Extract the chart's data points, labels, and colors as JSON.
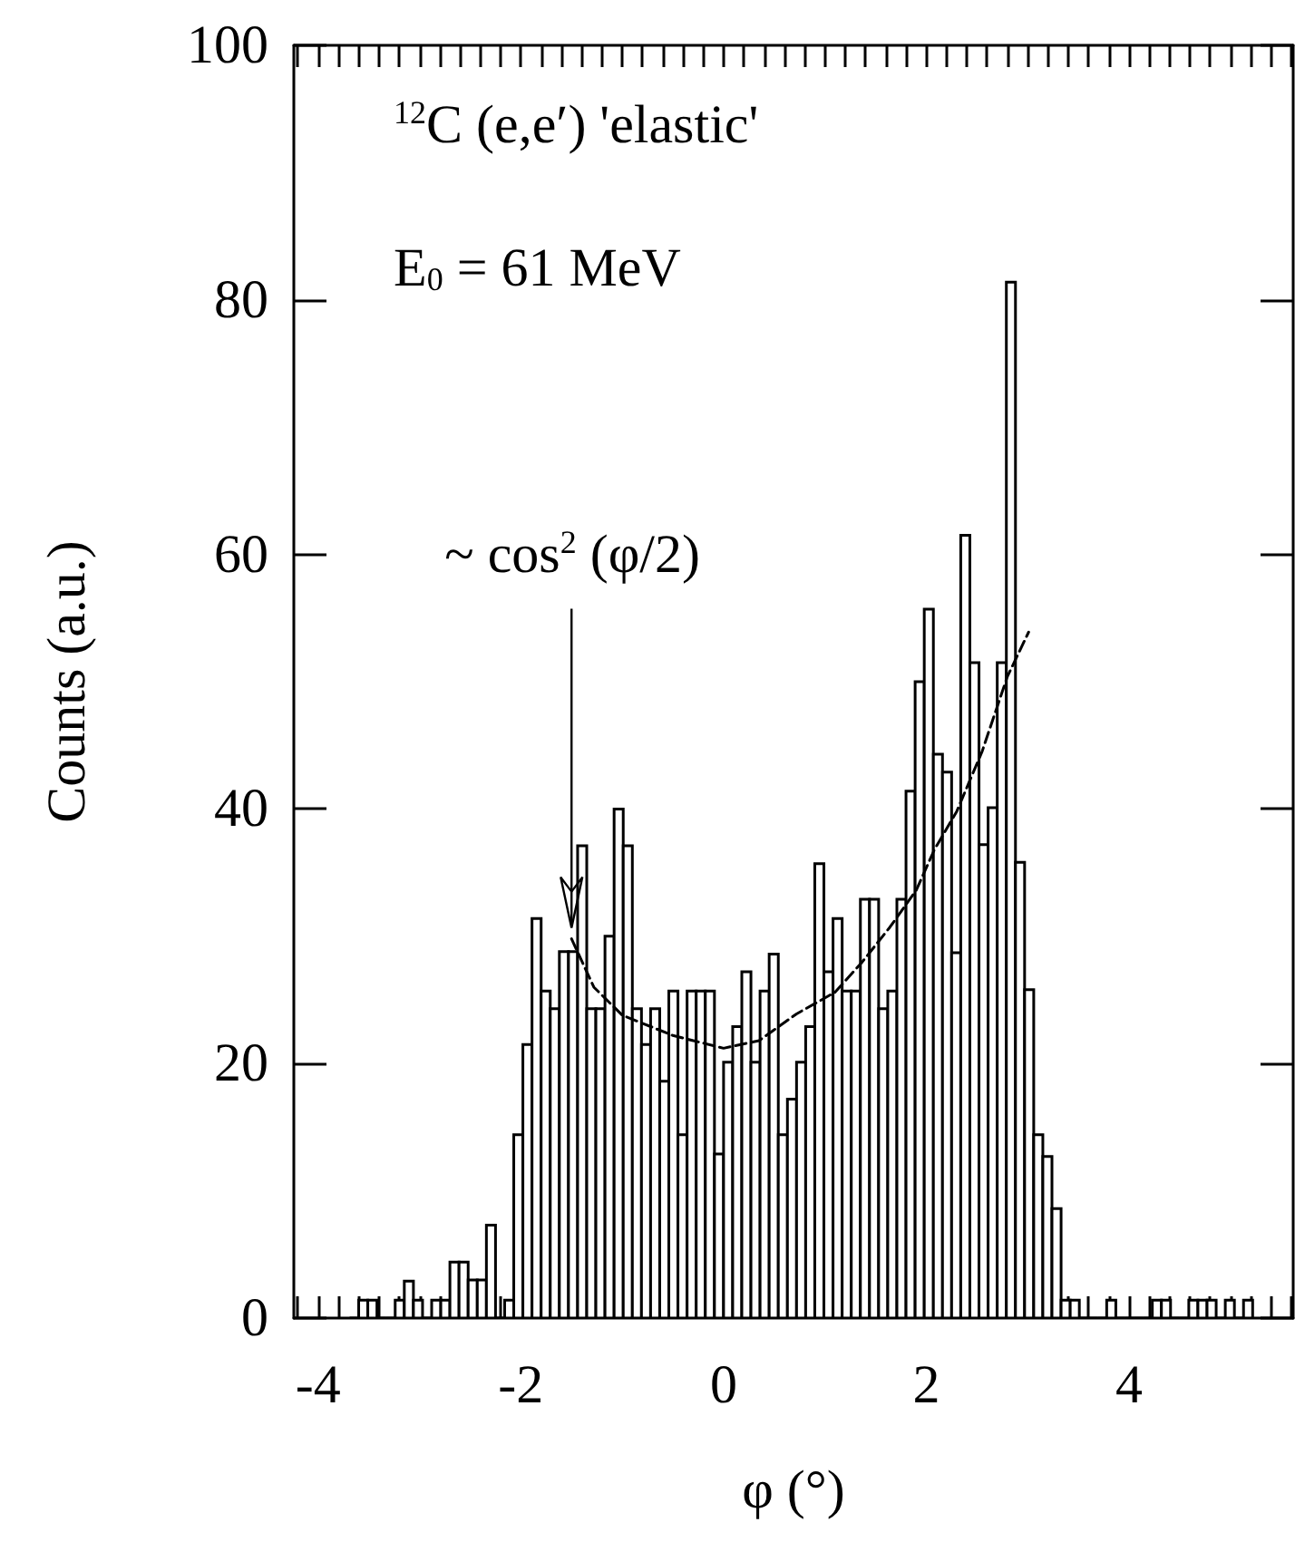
{
  "chart_data": {
    "type": "histogram",
    "xlabel": "φ (°)",
    "ylabel": "Counts (a.u.)",
    "color": "#000000",
    "bins": [
      -3.69,
      -3.6,
      -3.51,
      -3.42,
      -3.33,
      -3.24,
      -3.15,
      -3.06,
      -2.97,
      -2.88,
      -2.79,
      -2.7,
      -2.61,
      -2.52,
      -2.43,
      -2.34,
      -2.25,
      -2.16,
      -2.07,
      -1.98,
      -1.89,
      -1.8,
      -1.71,
      -1.62,
      -1.53,
      -1.44,
      -1.35,
      -1.26,
      -1.17,
      -1.08,
      -0.99,
      -0.9,
      -0.81,
      -0.72,
      -0.63,
      -0.54,
      -0.45,
      -0.36,
      -0.27,
      -0.18,
      -0.09,
      0,
      0.09,
      0.18,
      0.27,
      0.36,
      0.45,
      0.54,
      0.63,
      0.72,
      0.81,
      0.9,
      0.99,
      1.08,
      1.17,
      1.26,
      1.35,
      1.44,
      1.53,
      1.62,
      1.71,
      1.8,
      1.89,
      1.98,
      2.07,
      2.16,
      2.25,
      2.34,
      2.43,
      2.52,
      2.61,
      2.7,
      2.79,
      2.88,
      2.97,
      3.06,
      3.15,
      3.24,
      3.33,
      3.42,
      3.51,
      3.6,
      3.69,
      3.78,
      3.87,
      3.96,
      4.05,
      4.14,
      4.23,
      4.32,
      4.41,
      4.5,
      4.59,
      4.68,
      4.77,
      4.86,
      4.95,
      5.04,
      5.13,
      5.22
    ],
    "values": [
      0,
      1.4,
      1.4,
      0,
      0,
      1.4,
      2.9,
      1.4,
      0,
      1.4,
      1.4,
      4.4,
      4.4,
      3,
      3,
      7.3,
      0,
      1.4,
      14.4,
      21.5,
      31.4,
      25.7,
      24.3,
      28.8,
      28.8,
      37.1,
      24.3,
      24.3,
      30,
      40,
      37.1,
      24.3,
      21.5,
      24.3,
      18.6,
      25.7,
      14.4,
      25.7,
      25.7,
      25.7,
      12.9,
      20.1,
      22.9,
      27.2,
      20.1,
      25.7,
      28.6,
      14.4,
      17.2,
      20.1,
      22.9,
      35.7,
      27.2,
      31.4,
      25.7,
      25.7,
      32.9,
      32.9,
      24.3,
      25.7,
      32.9,
      41.4,
      50,
      55.7,
      44.3,
      42.9,
      28.7,
      61.5,
      51.5,
      37.2,
      40.1,
      51.5,
      81.4,
      35.8,
      25.8,
      14.4,
      12.7,
      8.6,
      1.4,
      1.4,
      0,
      0,
      0,
      1.4,
      0,
      0,
      0,
      0,
      1.4,
      1.4,
      0,
      0,
      1.4,
      1.4,
      1.4,
      0,
      1.4,
      0,
      1.4
    ],
    "series": [
      {
        "type": "line",
        "color": "#000000",
        "line_style": "dashed",
        "marker": "none",
        "x": [
          -1.5,
          -1.28,
          -1.0,
          -0.5,
          0,
          0.35,
          0.72,
          1.1,
          1.37,
          1.64,
          1.9,
          2.08,
          2.3,
          2.55,
          2.8,
          3.01
        ],
        "values": [
          29.8,
          26,
          23.8,
          22.2,
          21.2,
          21.8,
          23.9,
          25.6,
          28,
          30.7,
          33.6,
          36.8,
          39.8,
          44.5,
          50.4,
          53.9
        ]
      }
    ],
    "xlim": [
      -4.24,
      5.62
    ],
    "ylim": [
      0,
      100
    ],
    "xticks": [
      {
        "value": -4.2,
        "label": null
      },
      -4,
      {
        "value": -3.8,
        "label": null
      },
      {
        "value": -3.6,
        "label": null
      },
      {
        "value": -3.4,
        "label": null
      },
      {
        "value": -3.2,
        "label": null
      },
      {
        "value": -3,
        "label": null
      },
      {
        "value": -2.8,
        "label": null
      },
      {
        "value": -2.6,
        "label": null
      },
      {
        "value": -2.4,
        "label": null
      },
      {
        "value": -2.2,
        "label": null
      },
      -2,
      {
        "value": -1.8,
        "label": null
      },
      {
        "value": -1.6,
        "label": null
      },
      {
        "value": -1.4,
        "label": null
      },
      {
        "value": -1.2,
        "label": null
      },
      {
        "value": -1,
        "label": null
      },
      {
        "value": -0.8,
        "label": null
      },
      {
        "value": -0.6,
        "label": null
      },
      {
        "value": -0.4,
        "label": null
      },
      {
        "value": -0.2,
        "label": null
      },
      0,
      {
        "value": 0.2,
        "label": null
      },
      {
        "value": 0.4,
        "label": null
      },
      {
        "value": 0.6,
        "label": null
      },
      {
        "value": 0.8,
        "label": null
      },
      {
        "value": 1,
        "label": null
      },
      {
        "value": 1.2,
        "label": null
      },
      {
        "value": 1.4,
        "label": null
      },
      {
        "value": 1.6,
        "label": null
      },
      {
        "value": 1.8,
        "label": null
      },
      2,
      {
        "value": 2.2,
        "label": null
      },
      {
        "value": 2.4,
        "label": null
      },
      {
        "value": 2.6,
        "label": null
      },
      {
        "value": 2.8,
        "label": null
      },
      {
        "value": 3,
        "label": null
      },
      {
        "value": 3.2,
        "label": null
      },
      {
        "value": 3.4,
        "label": null
      },
      {
        "value": 3.6,
        "label": null
      },
      {
        "value": 3.8,
        "label": null
      },
      4,
      {
        "value": 4.2,
        "label": null
      },
      {
        "value": 4.4,
        "label": null
      },
      {
        "value": 4.6,
        "label": null
      },
      {
        "value": 4.8,
        "label": null
      },
      {
        "value": 5,
        "label": null
      },
      {
        "value": 5.2,
        "label": null
      },
      {
        "value": 5.4,
        "label": null
      },
      {
        "value": 5.6,
        "label": null
      }
    ],
    "yticks": [
      0,
      20,
      40,
      60,
      80,
      100
    ],
    "annotations": [
      "$^{12}$C (e,e′) 'elastic'",
      "E$_{0}$ = 61 MeV",
      {
        "text": "~ cos$^{2}$ (φ/2)",
        "x": -1.5,
        "y": 29.8
      }
    ]
  }
}
